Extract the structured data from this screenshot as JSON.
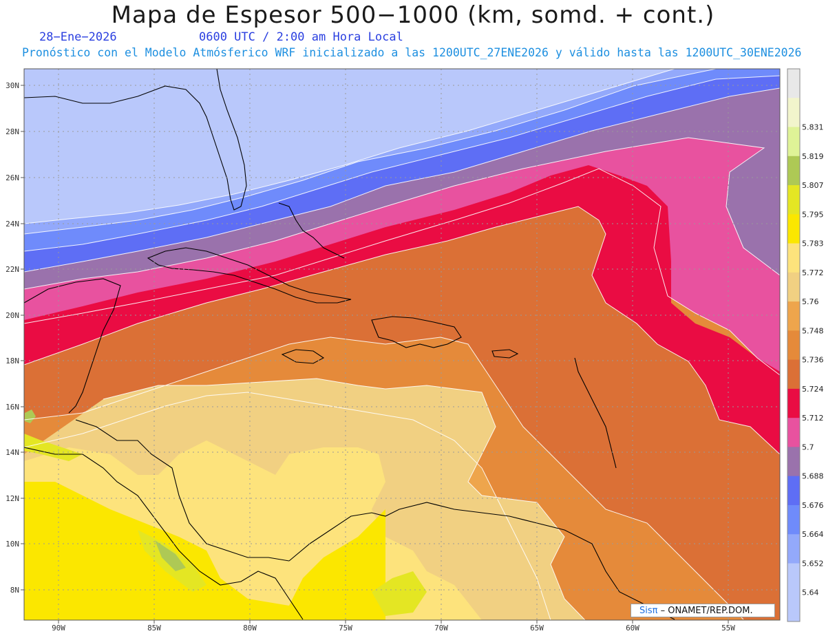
{
  "header": {
    "title": "Mapa de Espesor 500−1000 (km, somd. + cont.)",
    "date": "28−Ene−2026",
    "valid_time": "0600 UTC / 2:00 am Hora Local",
    "forecast_info": "Pronóstico con el Modelo Atmósferico WRF inicializado a las 1200UTC_27ENE2026 y válido hasta las  1200UTC_30ENE2026"
  },
  "colors": {
    "land_outline": "#000000",
    "grid": "#9a9a9a",
    "contour": "#ffffff"
  },
  "axes": {
    "lat_ticks": [
      "30N",
      "28N",
      "26N",
      "24N",
      "22N",
      "20N",
      "18N",
      "16N",
      "14N",
      "12N",
      "10N",
      "8N"
    ],
    "lon_ticks": [
      "90W",
      "85W",
      "80W",
      "75W",
      "70W",
      "65W",
      "60W",
      "55W"
    ]
  },
  "legend": {
    "levels": [
      {
        "label": "",
        "color": "#b9c8fb"
      },
      {
        "label": "5.64",
        "color": "#b9c8fb"
      },
      {
        "label": "5.652",
        "color": "#93a9fb"
      },
      {
        "label": "5.664",
        "color": "#6f8bfb"
      },
      {
        "label": "5.676",
        "color": "#5e6ef5"
      },
      {
        "label": "5.688",
        "color": "#9a72ac"
      },
      {
        "label": "5.7",
        "color": "#e8529f"
      },
      {
        "label": "5.712",
        "color": "#ea0c43"
      },
      {
        "label": "5.724",
        "color": "#db7036"
      },
      {
        "label": "5.736",
        "color": "#e58a3a"
      },
      {
        "label": "5.748",
        "color": "#eea54c"
      },
      {
        "label": "5.76",
        "color": "#f1d082"
      },
      {
        "label": "5.772",
        "color": "#fde37c"
      },
      {
        "label": "5.783",
        "color": "#fbe700"
      },
      {
        "label": "5.795",
        "color": "#e4e623"
      },
      {
        "label": "5.807",
        "color": "#aec955"
      },
      {
        "label": "5.819",
        "color": "#dff397"
      },
      {
        "label": "5.831",
        "color": "#f2f5cc"
      },
      {
        "label": "",
        "color": "#e8e8e8"
      }
    ]
  },
  "credit": {
    "logo": "Sisπ",
    "text": "ONAMET/REP.DOM."
  }
}
